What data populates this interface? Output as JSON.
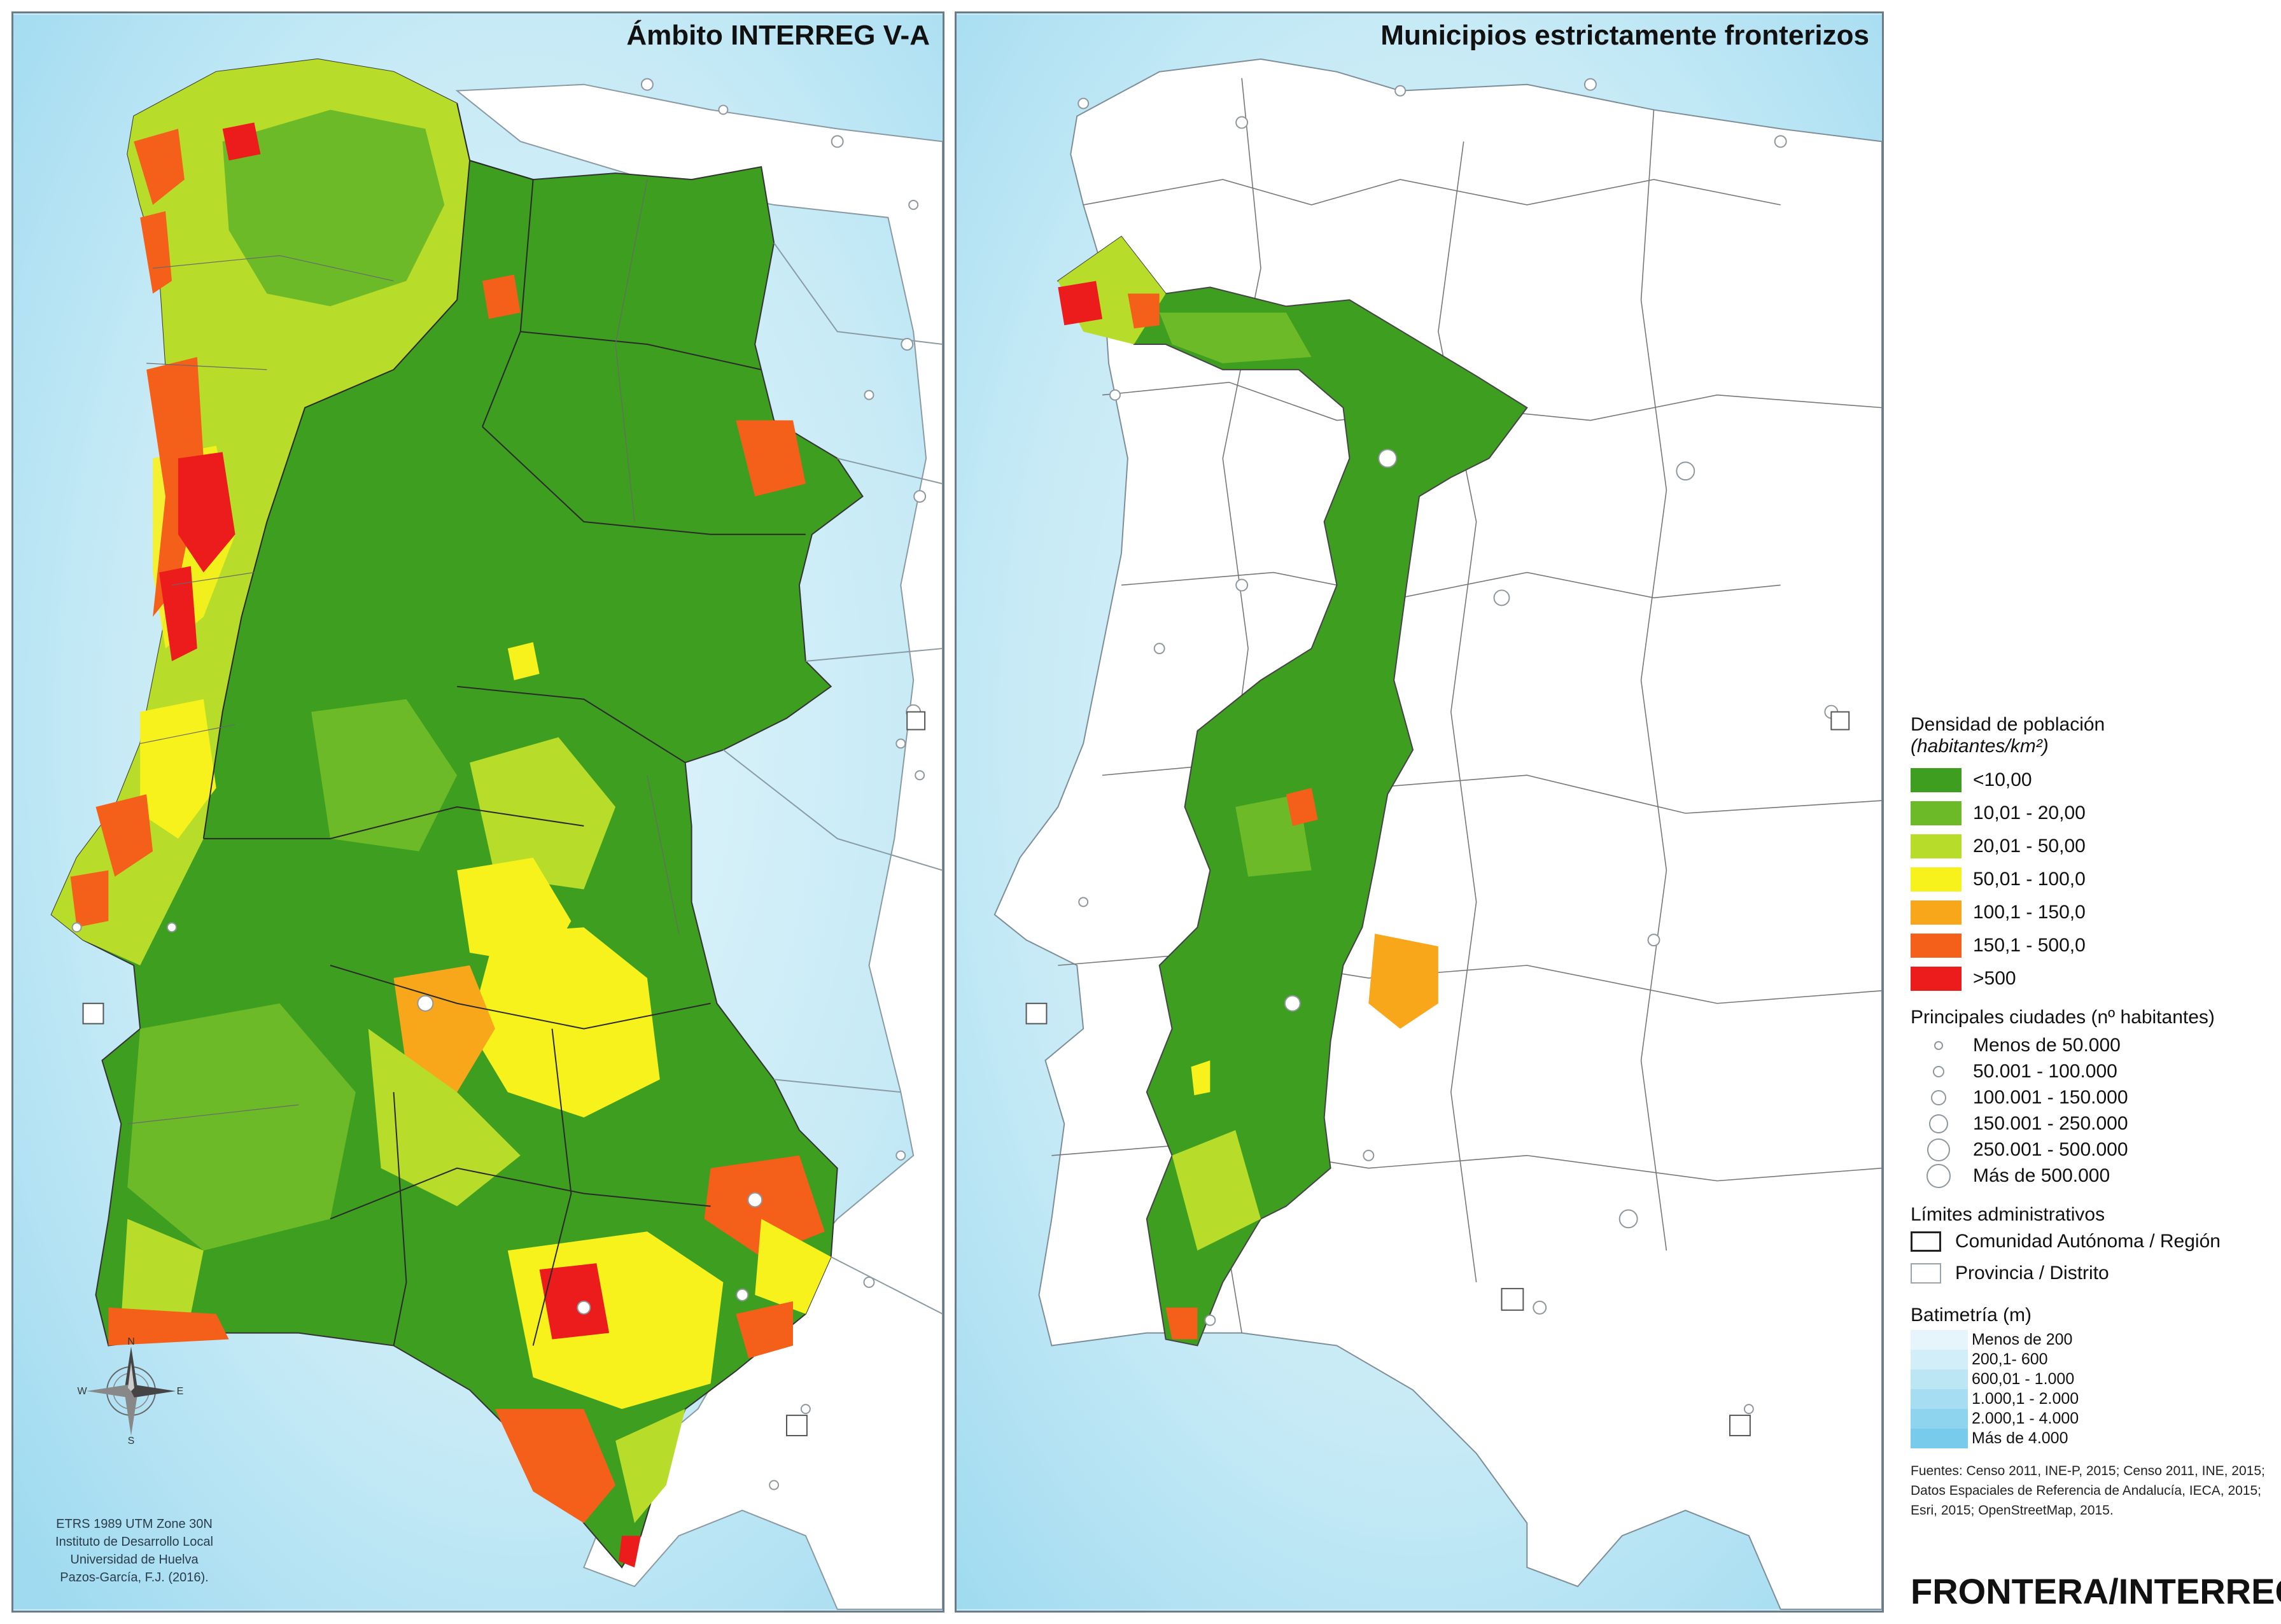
{
  "panels": {
    "left": {
      "title": "Ámbito INTERREG V-A"
    },
    "right": {
      "title": "Municipios estrictamente fronterizos"
    }
  },
  "compass": {
    "n": "N",
    "s": "S",
    "e": "E",
    "w": "W"
  },
  "credits": {
    "line1": "ETRS 1989 UTM Zone 30N",
    "line2": "Instituto de Desarrollo Local",
    "line3": "Universidad de Huelva",
    "line4": "Pazos-García, F.J. (2016)."
  },
  "legend": {
    "density": {
      "title": "Densidad de población",
      "subtitle": "(habitantes/km²)",
      "classes": [
        {
          "label": "<10,00",
          "color": "#3d9e1f"
        },
        {
          "label": "10,01 - 20,00",
          "color": "#6dba28"
        },
        {
          "label": "20,01 - 50,00",
          "color": "#b7dc29"
        },
        {
          "label": "50,01 - 100,0",
          "color": "#f7f21c"
        },
        {
          "label": "100,1 - 150,0",
          "color": "#f8a71b"
        },
        {
          "label": "150,1 - 500,0",
          "color": "#f4601a"
        },
        {
          "label": ">500",
          "color": "#ec1c1c"
        }
      ]
    },
    "cities": {
      "title": "Principales ciudades (nº habitantes)",
      "classes": [
        {
          "label": "Menos de 50.000"
        },
        {
          "label": "50.001 - 100.000"
        },
        {
          "label": "100.001 - 150.000"
        },
        {
          "label": "150.001 - 250.000"
        },
        {
          "label": "250.001 - 500.000"
        },
        {
          "label": "Más de 500.000"
        }
      ]
    },
    "admin": {
      "title": "Límites administrativos",
      "items": [
        {
          "label": "Comunidad Autónoma / Región"
        },
        {
          "label": "Provincia / Distrito"
        }
      ]
    },
    "bathymetry": {
      "title": "Batimetría (m)",
      "classes": [
        {
          "label": "Menos de 200",
          "color": "#e6f5fb"
        },
        {
          "label": "200,1- 600",
          "color": "#d2eef8"
        },
        {
          "label": "600,01 - 1.000",
          "color": "#bde6f5"
        },
        {
          "label": "1.000,1 - 2.000",
          "color": "#a6ddf2"
        },
        {
          "label": "2.000,1 - 4.000",
          "color": "#8fd4ee"
        },
        {
          "label": "Más de 4.000",
          "color": "#78cbea"
        }
      ]
    },
    "sources": {
      "line1": "Fuentes: Censo 2011, INE-P, 2015; Censo 2011, INE, 2015;",
      "line2": "Datos Espaciales de Referencia de Andalucía, IECA, 2015;",
      "line3": "Esri, 2015; OpenStreetMap, 2015."
    }
  },
  "footer": {
    "title": "FRONTERA/INTERREG V"
  }
}
